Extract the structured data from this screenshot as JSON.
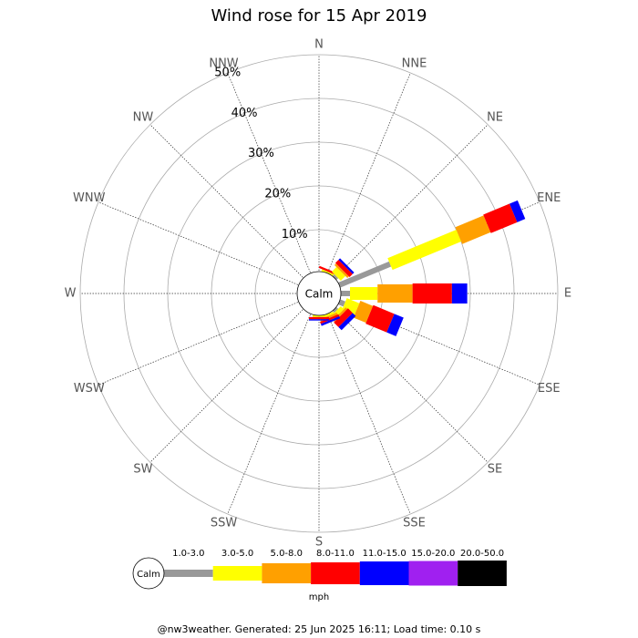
{
  "chart_data": {
    "type": "windrose",
    "title": "Wind rose for 15 Apr 2019",
    "directions": [
      "N",
      "NNE",
      "NE",
      "ENE",
      "E",
      "ESE",
      "SE",
      "SSE",
      "S",
      "SSW",
      "SW",
      "WSW",
      "W",
      "WNW",
      "NW",
      "NNW"
    ],
    "series": [
      {
        "name": "1.0-3.0",
        "color": "#999999",
        "values": [
          0,
          0.3,
          1,
          13,
          2.5,
          1.7,
          1,
          0.5,
          0.3,
          0,
          0,
          0,
          0,
          0,
          0,
          0
        ]
      },
      {
        "name": "3.0-5.0",
        "color": "#ffff00",
        "values": [
          0,
          0.5,
          1.5,
          17,
          6.3,
          3.1,
          1,
          0.5,
          0.5,
          0,
          0,
          0,
          0,
          0,
          0,
          0
        ]
      },
      {
        "name": "5.0-8.0",
        "color": "#ffa000",
        "values": [
          0,
          0,
          0.5,
          7,
          8,
          3.1,
          0.5,
          0.5,
          0,
          0,
          0,
          0,
          0,
          0,
          0,
          0
        ]
      },
      {
        "name": "8.0-11.0",
        "color": "#ff0000",
        "values": [
          0,
          0.5,
          1,
          6.5,
          9,
          5.2,
          1.5,
          0.5,
          0.5,
          0,
          0,
          0,
          0,
          0,
          0,
          0
        ]
      },
      {
        "name": "11.0-15.0",
        "color": "#0000ff",
        "values": [
          0,
          0,
          0.5,
          2,
          3.5,
          2.3,
          1,
          0.5,
          0.3,
          0,
          0,
          0,
          0,
          0,
          0,
          0
        ]
      },
      {
        "name": "15.0-20.0",
        "color": "#a020f0",
        "values": [
          0,
          0,
          0,
          0,
          0,
          0,
          0,
          0,
          0,
          0,
          0,
          0,
          0,
          0,
          0,
          0
        ]
      },
      {
        "name": "20.0-50.0",
        "color": "#000000",
        "values": [
          0,
          0,
          0,
          0,
          0,
          0,
          0,
          0,
          0,
          0,
          0,
          0,
          0,
          0,
          0,
          0
        ]
      }
    ],
    "rlim": [
      0,
      50
    ],
    "rticks": [
      {
        "value": 10,
        "label": "10%"
      },
      {
        "value": 20,
        "label": "20%"
      },
      {
        "value": 30,
        "label": "30%"
      },
      {
        "value": 40,
        "label": "40%"
      },
      {
        "value": 50,
        "label": "50%"
      }
    ],
    "center_label": "Calm",
    "unit_label": "mph",
    "footer": "@nw3weather. Generated: 25 Jun 2025 16:11; Load time: 0.10 s"
  }
}
